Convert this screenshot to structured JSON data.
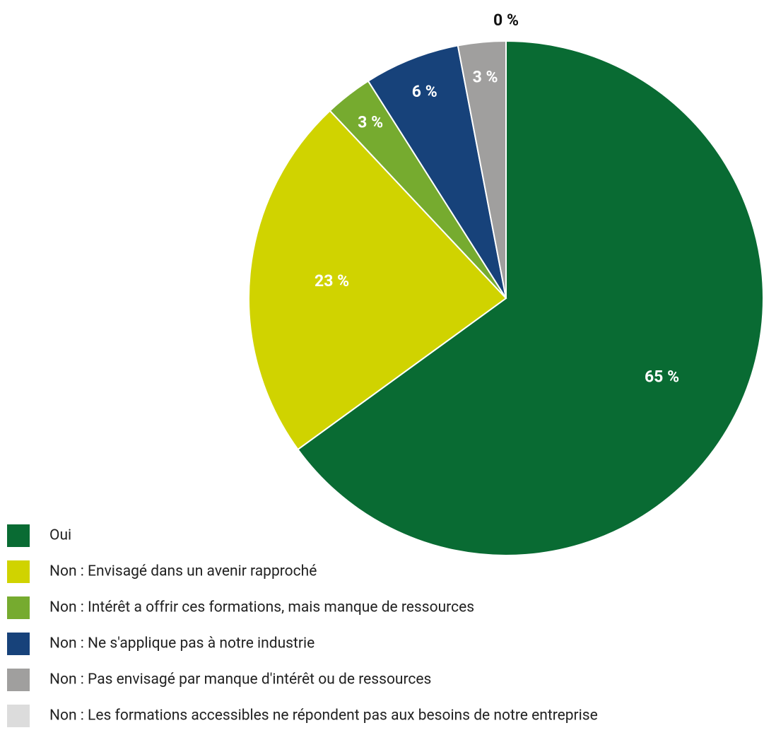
{
  "chart_data": {
    "type": "pie",
    "categories": [
      "Oui",
      "Non : Envisagé dans un avenir rapproché",
      "Non : Intérêt a offrir ces formations, mais manque de ressources",
      "Non : Ne s'applique pas à notre industrie",
      "Non : Pas envisagé par manque d'intérêt ou de ressources",
      "Non : Les formations accessibles ne répondent pas aux besoins de notre entreprise"
    ],
    "values": [
      65,
      23,
      3,
      6,
      3,
      0
    ],
    "value_labels": [
      "65 %",
      "23 %",
      "3 %",
      "6 %",
      "3 %",
      "0 %"
    ],
    "colors": [
      "#096b33",
      "#d0d300",
      "#76ab2f",
      "#17427a",
      "#a09f9e",
      "#dcdcdc"
    ],
    "legend": "bottom-left"
  }
}
